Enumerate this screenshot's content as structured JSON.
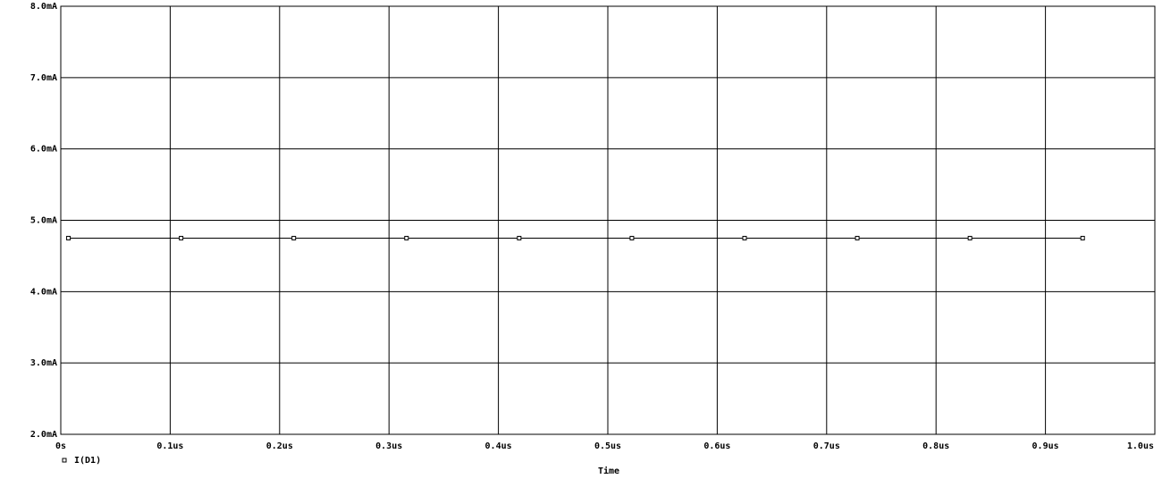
{
  "chart_data": {
    "type": "line",
    "xlabel": "Time",
    "x": [
      0.007,
      0.11,
      0.213,
      0.316,
      0.419,
      0.522,
      0.625,
      0.728,
      0.831,
      0.934
    ],
    "series": [
      {
        "name": "I(D1)",
        "color": "#000000",
        "values": [
          4.75,
          4.75,
          4.75,
          4.75,
          4.75,
          4.75,
          4.75,
          4.75,
          4.75,
          4.75
        ]
      }
    ],
    "xlim": [
      0,
      1.0
    ],
    "xticks": [
      {
        "value": 0,
        "label": "0s"
      },
      {
        "value": 0.1,
        "label": "0.1us"
      },
      {
        "value": 0.2,
        "label": "0.2us"
      },
      {
        "value": 0.3,
        "label": "0.3us"
      },
      {
        "value": 0.4,
        "label": "0.4us"
      },
      {
        "value": 0.5,
        "label": "0.5us"
      },
      {
        "value": 0.6,
        "label": "0.6us"
      },
      {
        "value": 0.7,
        "label": "0.7us"
      },
      {
        "value": 0.8,
        "label": "0.8us"
      },
      {
        "value": 0.9,
        "label": "0.9us"
      },
      {
        "value": 1.0,
        "label": "1.0us"
      }
    ],
    "ylim": [
      2.0,
      8.0
    ],
    "yticks": [
      {
        "value": 2.0,
        "label": "2.0mA"
      },
      {
        "value": 3.0,
        "label": "3.0mA"
      },
      {
        "value": 4.0,
        "label": "4.0mA"
      },
      {
        "value": 5.0,
        "label": "5.0mA"
      },
      {
        "value": 6.0,
        "label": "6.0mA"
      },
      {
        "value": 7.0,
        "label": "7.0mA"
      },
      {
        "value": 8.0,
        "label": "8.0mA"
      }
    ],
    "grid": true,
    "legend": "bottom-left"
  }
}
